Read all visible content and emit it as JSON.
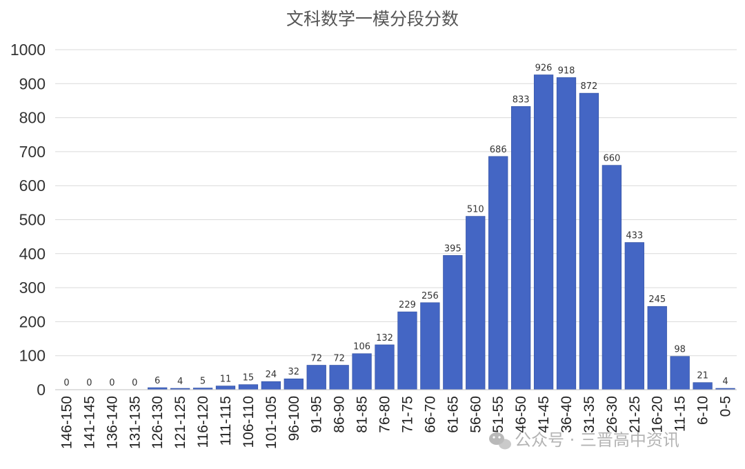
{
  "chart_data": {
    "type": "bar",
    "title": "文科数学一模分段分数",
    "xlabel": "",
    "ylabel": "",
    "ylim": [
      0,
      1000
    ],
    "yticks": [
      0,
      100,
      200,
      300,
      400,
      500,
      600,
      700,
      800,
      900,
      1000
    ],
    "grid": true,
    "bar_color": "#4466c4",
    "categories": [
      "146-150",
      "141-145",
      "136-140",
      "131-135",
      "126-130",
      "121-125",
      "116-120",
      "111-115",
      "106-110",
      "101-105",
      "96-100",
      "91-95",
      "86-90",
      "81-85",
      "76-80",
      "71-75",
      "66-70",
      "61-65",
      "56-60",
      "51-55",
      "46-50",
      "41-45",
      "36-40",
      "31-35",
      "26-30",
      "21-25",
      "16-20",
      "11-15",
      "6-10",
      "0-5"
    ],
    "values": [
      0,
      0,
      0,
      0,
      6,
      4,
      5,
      11,
      15,
      24,
      32,
      72,
      72,
      106,
      132,
      229,
      256,
      395,
      510,
      686,
      833,
      926,
      918,
      872,
      660,
      433,
      245,
      98,
      21,
      4
    ]
  },
  "watermark": {
    "icon": "wechat-icon",
    "text": "公众号 · 三晋高中资讯"
  }
}
